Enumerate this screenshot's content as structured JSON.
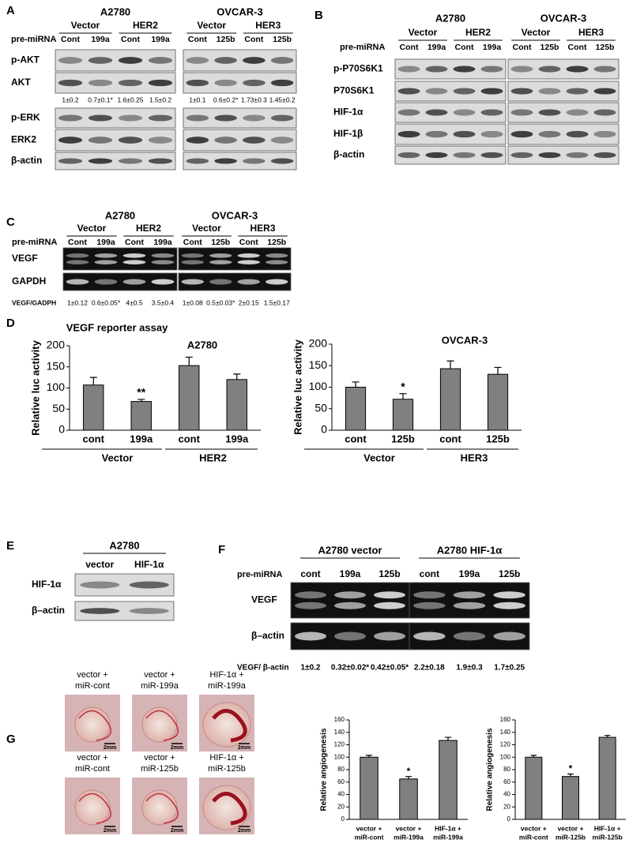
{
  "A": {
    "label": "A",
    "row_label": "pre-miRNA",
    "cells": [
      {
        "name": "A2780",
        "groups": [
          "Vector",
          "HER2"
        ],
        "lanes": [
          "Cont",
          "199a",
          "Cont",
          "199a"
        ],
        "quant": [
          "1±0.2",
          "0.7±0.1*",
          "1.6±0.25",
          "1.5±0.2"
        ]
      },
      {
        "name": "OVCAR-3",
        "groups": [
          "Vector",
          "HER3"
        ],
        "lanes": [
          "Cont",
          "125b",
          "Cont",
          "125b"
        ],
        "quant": [
          "1±0.1",
          "0.6±0.2*",
          "1.73±0.3",
          "1.45±0.2"
        ]
      }
    ],
    "blots": [
      "p-AKT",
      "AKT",
      "p-ERK",
      "ERK2",
      "β-actin"
    ]
  },
  "B": {
    "label": "B",
    "row_label": "pre-miRNA",
    "cells": [
      {
        "name": "A2780",
        "groups": [
          "Vector",
          "HER2"
        ],
        "lanes": [
          "Cont",
          "199a",
          "Cont",
          "199a"
        ]
      },
      {
        "name": "OVCAR-3",
        "groups": [
          "Vector",
          "HER3"
        ],
        "lanes": [
          "Cont",
          "125b",
          "Cont",
          "125b"
        ]
      }
    ],
    "blots": [
      "p-P70S6K1",
      "P70S6K1",
      "HIF-1α",
      "HIF-1β",
      "β-actin"
    ]
  },
  "C": {
    "label": "C",
    "row_label": "pre-miRNA",
    "quant_label": "VEGF/GADPH",
    "cells": [
      {
        "name": "A2780",
        "groups": [
          "Vector",
          "HER2"
        ],
        "lanes": [
          "Cont",
          "199a",
          "Cont",
          "199a"
        ],
        "quant": [
          "1±0.12",
          "0.6±0.05*",
          "4±0.5",
          "3.5±0.4"
        ]
      },
      {
        "name": "OVCAR-3",
        "groups": [
          "Vector",
          "HER3"
        ],
        "lanes": [
          "Cont",
          "125b",
          "Cont",
          "125b"
        ],
        "quant": [
          "1±0.08",
          "0.5±0.03*",
          "2±0.15",
          "1.5±0.17"
        ]
      }
    ],
    "blots": [
      "VEGF",
      "GAPDH"
    ]
  },
  "D": {
    "label": "D"
  },
  "E": {
    "label": "E",
    "cells": [
      {
        "name": "A2780",
        "lanes": [
          "vector",
          "HIF-1α"
        ]
      }
    ],
    "blots": [
      "HIF-1α",
      "β–actin"
    ]
  },
  "F": {
    "label": "F",
    "row_label": "pre-miRNA",
    "quant_label": "VEGF/ β-actin",
    "cells": [
      {
        "name": "A2780 vector",
        "lanes": [
          "cont",
          "199a",
          "125b"
        ],
        "quant": [
          "1±0.2",
          "0.32±0.02*",
          "0.42±0.05*"
        ]
      },
      {
        "name": "A2780 HIF-1α",
        "lanes": [
          "cont",
          "199a",
          "125b"
        ],
        "quant": [
          "2.2±0.18",
          "1.9±0.3",
          "1.7±0.25"
        ]
      }
    ],
    "blots": [
      "VEGF",
      "β–actin"
    ]
  },
  "G": {
    "label": "G",
    "images": [
      {
        "caption": [
          "vector +",
          "miR-cont"
        ],
        "scale": "2mm"
      },
      {
        "caption": [
          "vector +",
          "miR-199a"
        ],
        "scale": "2mm"
      },
      {
        "caption": [
          "HIF-1α +",
          "miR-199a"
        ],
        "scale": "2mm"
      },
      {
        "caption": [
          "vector +",
          "miR-cont"
        ],
        "scale": "2mm"
      },
      {
        "caption": [
          "vector +",
          "miR-125b"
        ],
        "scale": "2mm"
      },
      {
        "caption": [
          "HIF-1α +",
          "miR-125b"
        ],
        "scale": "2mm"
      }
    ]
  },
  "chart_data": [
    {
      "type": "bar",
      "title": "VEGF reporter assay",
      "subtitle": "A2780",
      "y_label": "Relative luc activity",
      "categories": [
        "cont",
        "199a",
        "cont",
        "199a"
      ],
      "groups": [
        "Vector",
        "HER2"
      ],
      "values": [
        107,
        68,
        153,
        120
      ],
      "errors": [
        18,
        5,
        20,
        13
      ],
      "annotations": [
        null,
        "**",
        null,
        null
      ],
      "color": "#808080",
      "ylim": [
        0,
        200
      ],
      "yticks": [
        0,
        50,
        100,
        150,
        200
      ]
    },
    {
      "type": "bar",
      "subtitle": "OVCAR-3",
      "y_label": "Relative luc activity",
      "categories": [
        "cont",
        "125b",
        "cont",
        "125b"
      ],
      "groups": [
        "Vector",
        "HER3"
      ],
      "values": [
        100,
        72,
        143,
        130
      ],
      "errors": [
        12,
        13,
        18,
        16
      ],
      "annotations": [
        null,
        "*",
        null,
        null
      ],
      "color": "#808080",
      "ylim": [
        0,
        200
      ],
      "yticks": [
        0,
        50,
        100,
        150,
        200
      ]
    },
    {
      "type": "bar",
      "y_label": "Relative angiogenesis",
      "categories": [
        [
          "vector +",
          "miR-cont"
        ],
        [
          "vector +",
          "miR-199a"
        ],
        [
          "HIF-1α +",
          "miR-199a"
        ]
      ],
      "values": [
        100,
        65,
        127
      ],
      "errors": [
        3,
        4,
        5
      ],
      "annotations": [
        null,
        "*",
        null
      ],
      "color": "#808080",
      "ylim": [
        0,
        160
      ],
      "yticks": [
        0,
        20,
        40,
        60,
        80,
        100,
        120,
        140,
        160
      ]
    },
    {
      "type": "bar",
      "y_label": "Relative angiogenesis",
      "categories": [
        [
          "vector +",
          "miR-cont"
        ],
        [
          "vector +",
          "miR-125b"
        ],
        [
          "HIF-1α +",
          "miR-125b"
        ]
      ],
      "values": [
        100,
        69,
        132
      ],
      "errors": [
        3,
        4,
        3
      ],
      "annotations": [
        null,
        "*",
        null
      ],
      "color": "#808080",
      "ylim": [
        0,
        160
      ],
      "yticks": [
        0,
        20,
        40,
        60,
        80,
        100,
        120,
        140,
        160
      ]
    }
  ]
}
